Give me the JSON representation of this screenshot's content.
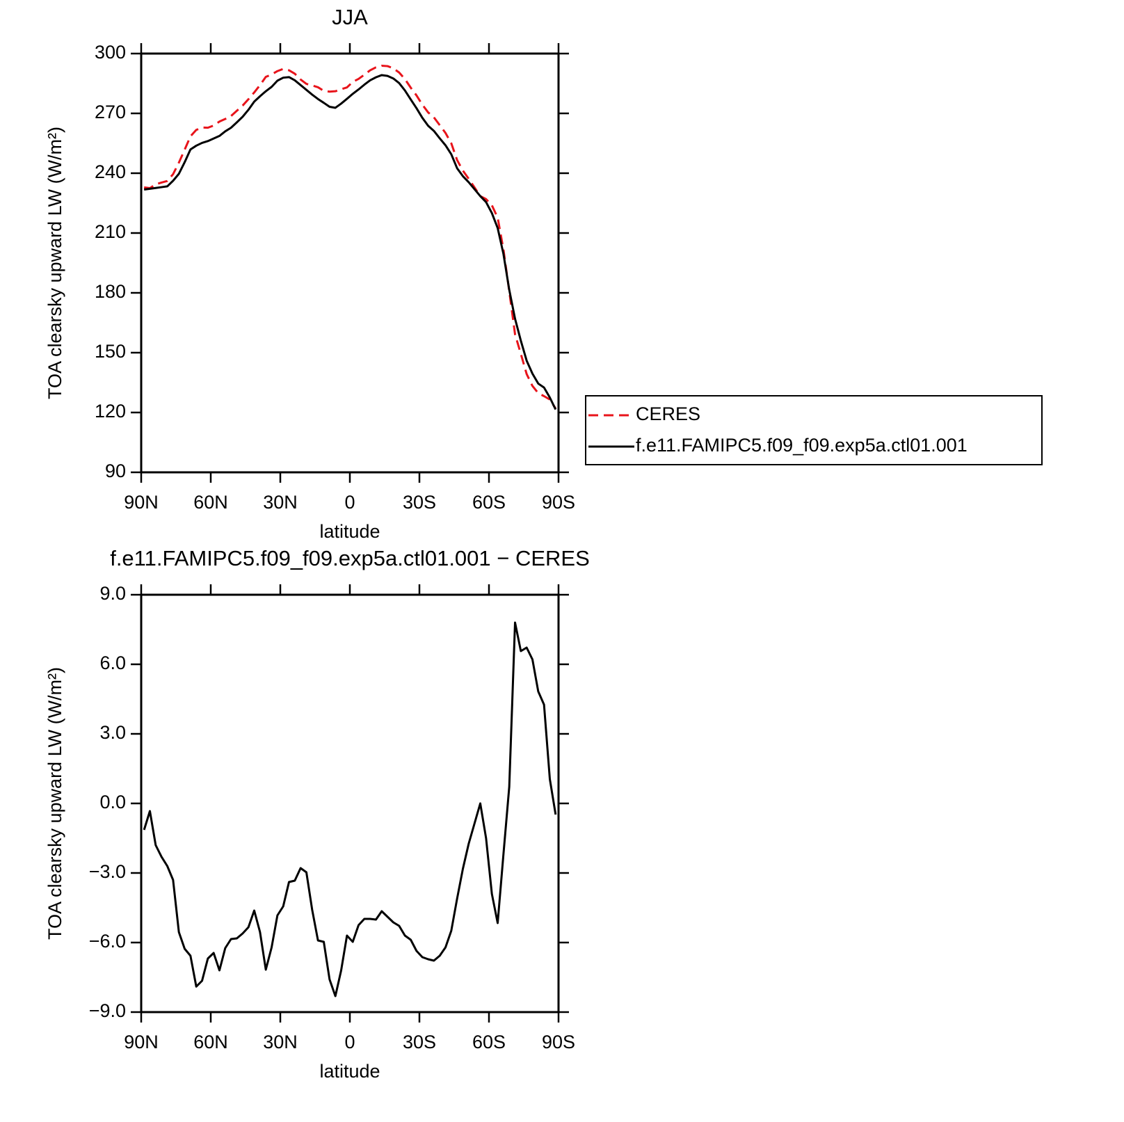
{
  "chart_data": [
    {
      "type": "line",
      "title": "JJA",
      "ylabel": "TOA clearsky upward LW (W/m²)",
      "xlabel": "latitude",
      "x": [
        88.75,
        86.25,
        83.75,
        81.25,
        78.75,
        76.25,
        73.75,
        71.25,
        68.75,
        66.25,
        63.75,
        61.25,
        58.75,
        56.25,
        53.75,
        51.25,
        48.75,
        46.25,
        43.75,
        41.25,
        38.75,
        36.25,
        33.75,
        31.25,
        28.75,
        26.25,
        23.75,
        21.25,
        18.75,
        16.25,
        13.75,
        11.25,
        8.75,
        6.25,
        3.75,
        1.25,
        -1.25,
        -3.75,
        -6.25,
        -8.75,
        -11.25,
        -13.75,
        -16.25,
        -18.75,
        -21.25,
        -23.75,
        -26.25,
        -28.75,
        -31.25,
        -33.75,
        -36.25,
        -38.75,
        -41.25,
        -43.75,
        -46.25,
        -48.75,
        -51.25,
        -53.75,
        -56.25,
        -58.75,
        -61.25,
        -63.75,
        -66.25,
        -68.75,
        -71.25,
        -73.75,
        -76.25,
        -78.75,
        -81.25,
        -83.75,
        -86.25,
        -88.75
      ],
      "series": [
        {
          "name": "CERES",
          "color": "#e8141b",
          "linestyle": "dashed",
          "values": [
            232.9,
            232.5,
            234.4,
            235.3,
            236.1,
            239.5,
            245.3,
            251.8,
            258.5,
            261.7,
            262.9,
            262.8,
            263.9,
            265.9,
            267.2,
            268.7,
            271.3,
            273.9,
            277.1,
            280.5,
            284.2,
            288.3,
            289.5,
            291.2,
            292.3,
            291.6,
            289.9,
            287.0,
            284.8,
            284.0,
            283.1,
            281.3,
            280.9,
            281.1,
            282.1,
            283.0,
            285.8,
            287.3,
            289.4,
            291.6,
            293.1,
            293.9,
            293.7,
            292.6,
            290.5,
            287.2,
            282.9,
            279.0,
            274.4,
            270.5,
            268.0,
            264.1,
            260.2,
            255.0,
            246.6,
            241.3,
            237.2,
            232.9,
            228.5,
            227.0,
            223.9,
            217.7,
            201.7,
            180.8,
            159.2,
            149.4,
            139.3,
            133.3,
            129.7,
            128.2,
            126.5,
            122.0
          ]
        },
        {
          "name": "f.e11.FAMIPC5.f09_f09.exp5a.ctl01.001",
          "color": "#000000",
          "linestyle": "solid",
          "values": [
            231.8,
            232.2,
            232.6,
            233.0,
            233.4,
            236.2,
            239.7,
            245.5,
            251.9,
            253.8,
            255.2,
            256.1,
            257.4,
            258.7,
            261.0,
            262.8,
            265.5,
            268.3,
            271.8,
            275.9,
            278.6,
            281.1,
            283.3,
            286.4,
            287.9,
            288.2,
            286.6,
            284.2,
            281.8,
            279.4,
            277.2,
            275.3,
            273.3,
            272.8,
            274.9,
            277.3,
            279.8,
            282.0,
            284.4,
            286.6,
            288.1,
            289.2,
            288.8,
            287.5,
            285.2,
            281.5,
            277.0,
            272.6,
            267.8,
            263.8,
            261.2,
            257.5,
            254,
            249.5,
            242.5,
            238.5,
            235.5,
            232,
            228.5,
            225.5,
            220,
            212.5,
            199.5,
            181.5,
            167,
            156,
            146,
            139.5,
            134.5,
            132.5,
            127.5,
            121.5
          ]
        }
      ],
      "xlim": [
        90,
        -90
      ],
      "xticks": [
        {
          "value": 90,
          "label": "90N"
        },
        {
          "value": 60,
          "label": "60N"
        },
        {
          "value": 30,
          "label": "30N"
        },
        0,
        {
          "value": -30,
          "label": "30S"
        },
        {
          "value": -60,
          "label": "60S"
        },
        {
          "value": -90,
          "label": "90S"
        }
      ],
      "ylim": [
        90,
        300
      ],
      "yticks": [
        90,
        120,
        150,
        180,
        210,
        240,
        270,
        300
      ],
      "legend": "right"
    },
    {
      "type": "line",
      "title": "f.e11.FAMIPC5.f09_f09.exp5a.ctl01.001 − CERES",
      "ylabel": "TOA clearsky upward LW (W/m²)",
      "xlabel": "latitude",
      "x": [
        88.75,
        86.25,
        83.75,
        81.25,
        78.75,
        76.25,
        73.75,
        71.25,
        68.75,
        66.25,
        63.75,
        61.25,
        58.75,
        56.25,
        53.75,
        51.25,
        48.75,
        46.25,
        43.75,
        41.25,
        38.75,
        36.25,
        33.75,
        31.25,
        28.75,
        26.25,
        23.75,
        21.25,
        18.75,
        16.25,
        13.75,
        11.25,
        8.75,
        6.25,
        3.75,
        1.25,
        -1.25,
        -3.75,
        -6.25,
        -8.75,
        -11.25,
        -13.75,
        -16.25,
        -18.75,
        -21.25,
        -23.75,
        -26.25,
        -28.75,
        -31.25,
        -33.75,
        -36.25,
        -38.75,
        -41.25,
        -43.75,
        -46.25,
        -48.75,
        -51.25,
        -53.75,
        -56.25,
        -58.75,
        -61.25,
        -63.75,
        -66.25,
        -68.75,
        -71.25,
        -73.75,
        -76.25,
        -78.75,
        -81.25,
        -83.75,
        -86.25,
        -88.75
      ],
      "values": [
        -1.14,
        -0.33,
        -1.8,
        -2.3,
        -2.7,
        -3.3,
        -5.55,
        -6.27,
        -6.57,
        -7.9,
        -7.65,
        -6.69,
        -6.45,
        -7.2,
        -6.24,
        -5.85,
        -5.82,
        -5.61,
        -5.34,
        -4.62,
        -5.55,
        -7.17,
        -6.21,
        -4.83,
        -4.44,
        -3.39,
        -3.33,
        -2.79,
        -2.97,
        -4.59,
        -5.91,
        -5.97,
        -7.59,
        -8.31,
        -7.2,
        -5.7,
        -5.97,
        -5.25,
        -4.98,
        -4.98,
        -5.01,
        -4.65,
        -4.89,
        -5.13,
        -5.28,
        -5.7,
        -5.88,
        -6.36,
        -6.63,
        -6.72,
        -6.78,
        -6.57,
        -6.21,
        -5.49,
        -4.11,
        -2.82,
        -1.74,
        -0.87,
        0.0,
        -1.5,
        -3.9,
        -5.16,
        -2.19,
        0.72,
        7.8,
        6.57,
        6.72,
        6.21,
        4.83,
        4.26,
        1.05,
        -0.48
      ],
      "color": "#000000",
      "xlim": [
        90,
        -90
      ],
      "xticks": [
        {
          "value": 90,
          "label": "90N"
        },
        {
          "value": 60,
          "label": "60N"
        },
        {
          "value": 30,
          "label": "30N"
        },
        0,
        {
          "value": -30,
          "label": "30S"
        },
        {
          "value": -60,
          "label": "60S"
        },
        {
          "value": -90,
          "label": "90S"
        }
      ],
      "ylim": [
        -9,
        9
      ],
      "yticks": [
        {
          "value": -9,
          "label": "−9.0"
        },
        {
          "value": -6,
          "label": "−6.0"
        },
        {
          "value": -3,
          "label": "−3.0"
        },
        {
          "value": 0,
          "label": "0.0"
        },
        {
          "value": 3,
          "label": "3.0"
        },
        {
          "value": 6,
          "label": "6.0"
        },
        {
          "value": 9,
          "label": "9.0"
        }
      ]
    }
  ]
}
